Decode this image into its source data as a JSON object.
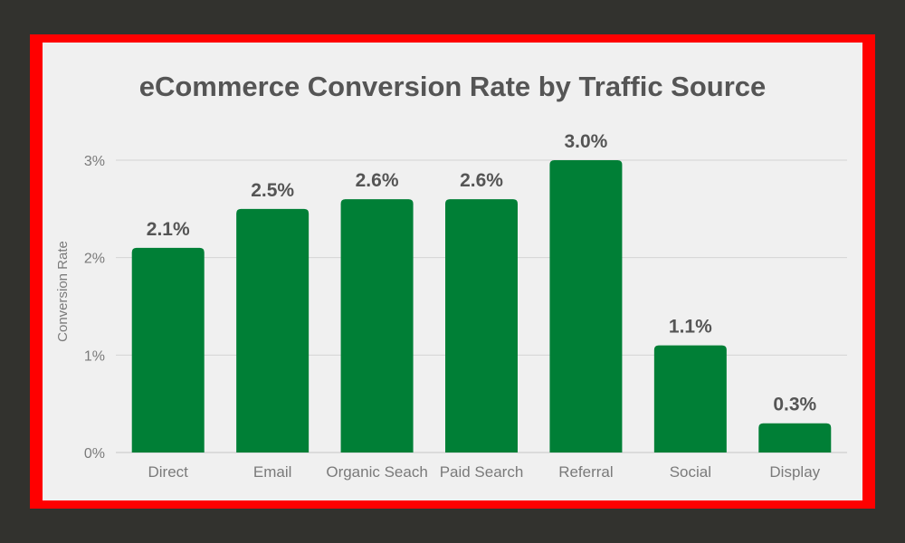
{
  "colors": {
    "background": "#32322e",
    "frame": "#ff0000",
    "panel": "#f0f0f0",
    "bar": "#007f36",
    "text": "#555555",
    "axis_text": "#7a7a7a",
    "grid": "#d4d4d4"
  },
  "chart_data": {
    "type": "bar",
    "title": "eCommerce Conversion Rate by Traffic Source",
    "xlabel": "",
    "ylabel": "Conversion Rate",
    "ylim": [
      0,
      3
    ],
    "yticks": [
      0,
      1,
      2,
      3
    ],
    "ytick_labels": [
      "0%",
      "1%",
      "2%",
      "3%"
    ],
    "grid": true,
    "legend": "none",
    "categories": [
      "Direct",
      "Email",
      "Organic Seach",
      "Paid Search",
      "Referral",
      "Social",
      "Display"
    ],
    "values": [
      2.1,
      2.5,
      2.6,
      2.6,
      3.0,
      1.1,
      0.3
    ],
    "data_labels": [
      "2.1%",
      "2.5%",
      "2.6%",
      "2.6%",
      "3.0%",
      "1.1%",
      "0.3%"
    ]
  }
}
